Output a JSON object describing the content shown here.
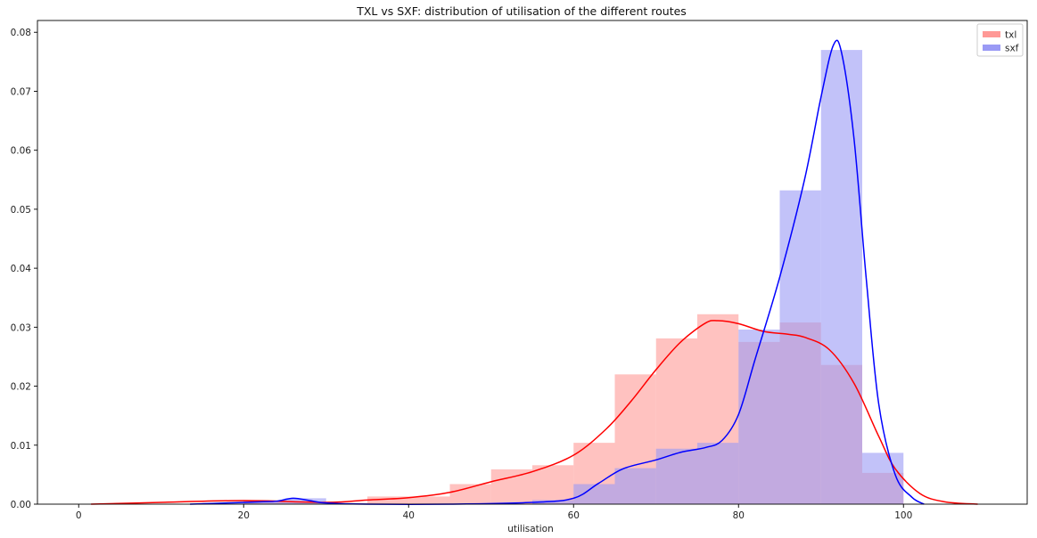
{
  "chart_data": {
    "type": "bar",
    "title": "TXL vs SXF: distribution of utilisation of the different routes",
    "xlabel": "utilisation",
    "ylabel": "",
    "xlim": [
      -5,
      115
    ],
    "ylim": [
      0,
      0.082
    ],
    "x_ticks": [
      0,
      20,
      40,
      60,
      80,
      100
    ],
    "y_ticks": [
      0.0,
      0.01,
      0.02,
      0.03,
      0.04,
      0.05,
      0.06,
      0.07,
      0.08
    ],
    "x_tick_labels": [
      "0",
      "20",
      "40",
      "60",
      "80",
      "100"
    ],
    "y_tick_labels": [
      "0.00",
      "0.01",
      "0.02",
      "0.03",
      "0.04",
      "0.05",
      "0.06",
      "0.07",
      "0.08"
    ],
    "grid": false,
    "legend_position": "top-right",
    "series": [
      {
        "name": "txl",
        "color": "#ff0000",
        "bar_color": "#ff9996",
        "bins": [
          {
            "x0": 20,
            "x1": 25,
            "value": 0.0007
          },
          {
            "x0": 25,
            "x1": 30,
            "value": 0.0003
          },
          {
            "x0": 30,
            "x1": 35,
            "value": 0.0002
          },
          {
            "x0": 35,
            "x1": 40,
            "value": 0.0013
          },
          {
            "x0": 40,
            "x1": 45,
            "value": 0.0013
          },
          {
            "x0": 45,
            "x1": 50,
            "value": 0.0034
          },
          {
            "x0": 50,
            "x1": 55,
            "value": 0.0059
          },
          {
            "x0": 55,
            "x1": 60,
            "value": 0.0066
          },
          {
            "x0": 60,
            "x1": 65,
            "value": 0.0104
          },
          {
            "x0": 65,
            "x1": 70,
            "value": 0.022
          },
          {
            "x0": 70,
            "x1": 75,
            "value": 0.0281
          },
          {
            "x0": 75,
            "x1": 80,
            "value": 0.0322
          },
          {
            "x0": 80,
            "x1": 85,
            "value": 0.0275
          },
          {
            "x0": 85,
            "x1": 90,
            "value": 0.0308
          },
          {
            "x0": 90,
            "x1": 95,
            "value": 0.0236
          },
          {
            "x0": 95,
            "x1": 100,
            "value": 0.0053
          }
        ],
        "kde": [
          [
            1.5,
            0.0
          ],
          [
            10,
            0.0003
          ],
          [
            20,
            0.0006
          ],
          [
            30,
            0.0003
          ],
          [
            35,
            0.0007
          ],
          [
            40,
            0.0011
          ],
          [
            45,
            0.002
          ],
          [
            50,
            0.0038
          ],
          [
            55,
            0.0055
          ],
          [
            60,
            0.0083
          ],
          [
            64,
            0.0128
          ],
          [
            67,
            0.0175
          ],
          [
            70,
            0.0228
          ],
          [
            73,
            0.0275
          ],
          [
            76,
            0.0307
          ],
          [
            77.5,
            0.0311
          ],
          [
            80,
            0.0306
          ],
          [
            83,
            0.0293
          ],
          [
            86,
            0.0288
          ],
          [
            88,
            0.0283
          ],
          [
            91,
            0.0262
          ],
          [
            94,
            0.0205
          ],
          [
            97,
            0.0115
          ],
          [
            99,
            0.006
          ],
          [
            102,
            0.0018
          ],
          [
            105,
            0.0004
          ],
          [
            109,
            0.0
          ]
        ]
      },
      {
        "name": "sxf",
        "color": "#0000ff",
        "bar_color": "#9a9af5",
        "bins": [
          {
            "x0": 15,
            "x1": 20,
            "value": 0.0002
          },
          {
            "x0": 20,
            "x1": 25,
            "value": 0.0004
          },
          {
            "x0": 25,
            "x1": 30,
            "value": 0.001
          },
          {
            "x0": 55,
            "x1": 60,
            "value": 0.0007
          },
          {
            "x0": 60,
            "x1": 65,
            "value": 0.0034
          },
          {
            "x0": 65,
            "x1": 70,
            "value": 0.0061
          },
          {
            "x0": 70,
            "x1": 75,
            "value": 0.0094
          },
          {
            "x0": 75,
            "x1": 80,
            "value": 0.0104
          },
          {
            "x0": 80,
            "x1": 85,
            "value": 0.0296
          },
          {
            "x0": 85,
            "x1": 90,
            "value": 0.0532
          },
          {
            "x0": 90,
            "x1": 95,
            "value": 0.077
          },
          {
            "x0": 95,
            "x1": 100,
            "value": 0.0087
          }
        ],
        "kde": [
          [
            13.5,
            0.0
          ],
          [
            18,
            0.0002
          ],
          [
            22,
            0.0004
          ],
          [
            24,
            0.0005
          ],
          [
            26,
            0.001
          ],
          [
            28,
            0.0006
          ],
          [
            30,
            0.0002
          ],
          [
            35,
            0.0
          ],
          [
            45,
            0.0
          ],
          [
            55,
            0.0003
          ],
          [
            60,
            0.001
          ],
          [
            63,
            0.0035
          ],
          [
            66,
            0.006
          ],
          [
            70,
            0.0075
          ],
          [
            73,
            0.0088
          ],
          [
            76,
            0.0096
          ],
          [
            78,
            0.0108
          ],
          [
            80,
            0.0152
          ],
          [
            82,
            0.0245
          ],
          [
            85,
            0.0385
          ],
          [
            88,
            0.055
          ],
          [
            90,
            0.069
          ],
          [
            91.5,
            0.0778
          ],
          [
            92.5,
            0.0765
          ],
          [
            94,
            0.062
          ],
          [
            95.5,
            0.038
          ],
          [
            97,
            0.017
          ],
          [
            99,
            0.005
          ],
          [
            101,
            0.0012
          ],
          [
            102.5,
            0.0
          ]
        ]
      }
    ]
  }
}
